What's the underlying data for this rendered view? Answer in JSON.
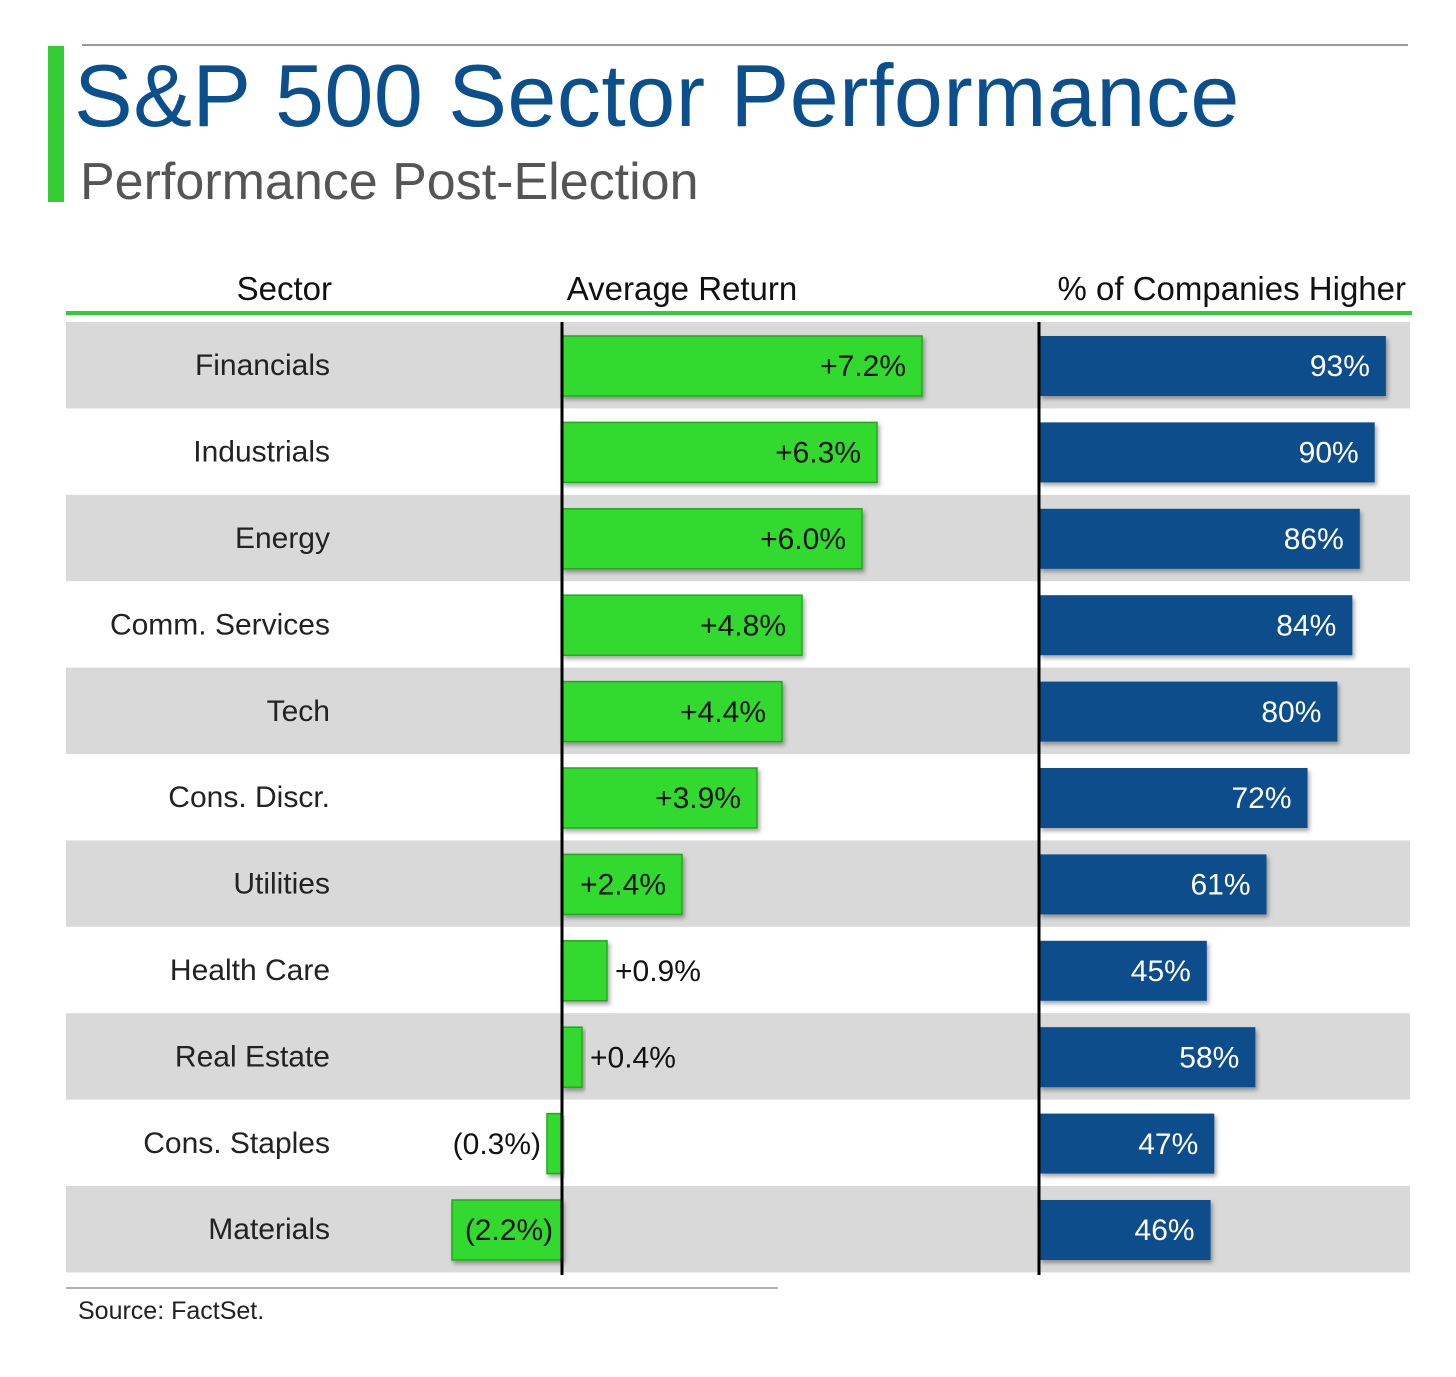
{
  "title": "S&P 500 Sector Performance",
  "subtitle": "Performance Post-Election",
  "source": "Source: FactSet.",
  "colors": {
    "accent": "#33cc33",
    "title": "#0b4f8c",
    "return_bar": "#33d92e",
    "return_bar_border": "#22a81c",
    "pct_bar": "#0a4d8c",
    "row_shade": "#d9d9d9",
    "header_rule": "#33cc33"
  },
  "chart_data": {
    "type": "bar",
    "columns": [
      "Sector",
      "Average Return",
      "% of Companies Higher"
    ],
    "categories": [
      "Financials",
      "Industrials",
      "Energy",
      "Comm. Services",
      "Tech",
      "Cons. Discr.",
      "Utilities",
      "Health Care",
      "Real Estate",
      "Cons. Staples",
      "Materials"
    ],
    "series": [
      {
        "name": "Average Return",
        "values": [
          7.2,
          6.3,
          6.0,
          4.8,
          4.4,
          3.9,
          2.4,
          0.9,
          0.4,
          -0.3,
          -2.2
        ],
        "labels": [
          "+7.2%",
          "+6.3%",
          "+6.0%",
          "+4.8%",
          "+4.4%",
          "+3.9%",
          "+2.4%",
          "+0.9%",
          "+0.4%",
          "(0.3%)",
          "(2.2%)"
        ]
      },
      {
        "name": "% of Companies Higher",
        "values": [
          93,
          90,
          86,
          84,
          80,
          72,
          61,
          45,
          58,
          47,
          46
        ],
        "labels": [
          "93%",
          "90%",
          "86%",
          "84%",
          "80%",
          "72%",
          "61%",
          "45%",
          "58%",
          "47%",
          "46%"
        ]
      }
    ]
  }
}
